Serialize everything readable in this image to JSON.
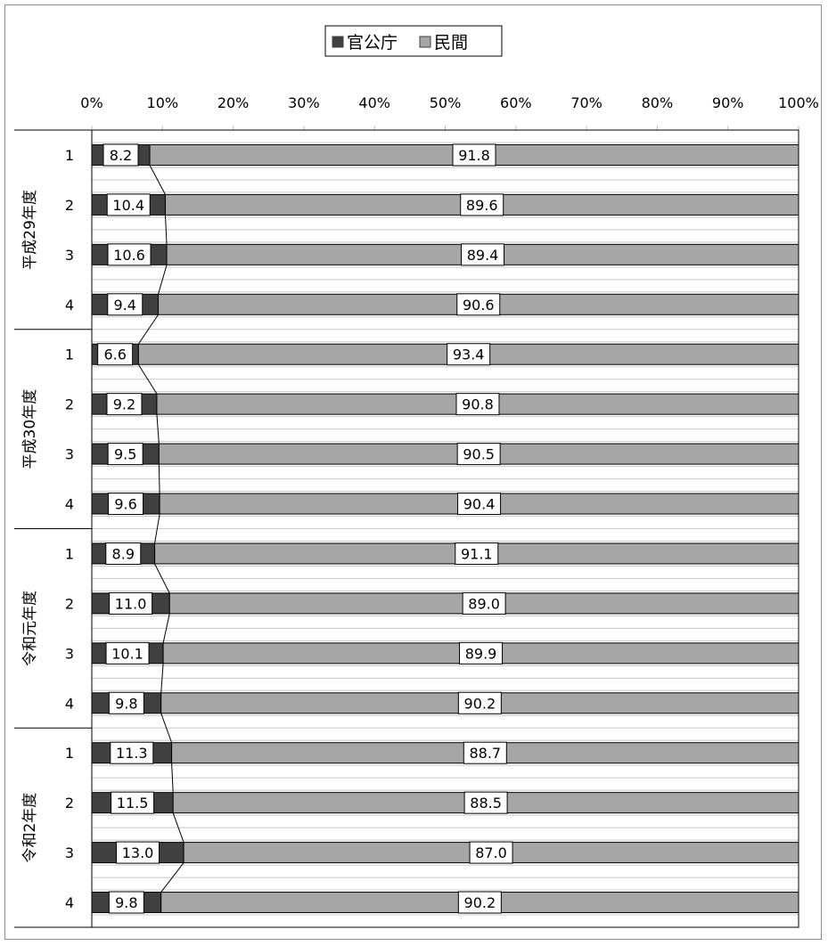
{
  "chart_data": {
    "type": "bar",
    "orientation": "horizontal",
    "stacked": "percent",
    "legend": {
      "placement": "top",
      "entries": [
        "官公庁",
        "民間"
      ]
    },
    "series": [
      {
        "name": "官公庁",
        "color": "#404040",
        "values": [
          8.2,
          10.4,
          10.6,
          9.4,
          6.6,
          9.2,
          9.5,
          9.6,
          8.9,
          11.0,
          10.1,
          9.8,
          11.3,
          11.5,
          13.0,
          9.8
        ]
      },
      {
        "name": "民間",
        "color": "#a6a6a6",
        "values": [
          91.8,
          89.6,
          89.4,
          90.6,
          93.4,
          90.8,
          90.5,
          90.4,
          91.1,
          89.0,
          89.9,
          90.2,
          88.7,
          88.5,
          87.0,
          90.2
        ]
      }
    ],
    "value_labels": [
      [
        "8.2",
        "10.4",
        "10.6",
        "9.4",
        "6.6",
        "9.2",
        "9.5",
        "9.6",
        "8.9",
        "11.0",
        "10.1",
        "9.8",
        "11.3",
        "11.5",
        "13.0",
        "9.8"
      ],
      [
        "91.8",
        "89.6",
        "89.4",
        "90.6",
        "93.4",
        "90.8",
        "90.5",
        "90.4",
        "91.1",
        "89.0",
        "89.9",
        "90.2",
        "88.7",
        "88.5",
        "87.0",
        "90.2"
      ]
    ],
    "groups": [
      {
        "label": "平成29年度",
        "quarters": [
          "1",
          "2",
          "3",
          "4"
        ]
      },
      {
        "label": "平成30年度",
        "quarters": [
          "1",
          "2",
          "3",
          "4"
        ]
      },
      {
        "label": "令和元年度",
        "quarters": [
          "1",
          "2",
          "3",
          "4"
        ]
      },
      {
        "label": "令和2年度",
        "quarters": [
          "1",
          "2",
          "3",
          "4"
        ]
      }
    ],
    "x_ticks": [
      "0%",
      "10%",
      "20%",
      "30%",
      "40%",
      "50%",
      "60%",
      "70%",
      "80%",
      "90%",
      "100%"
    ],
    "xlim": [
      0,
      100
    ],
    "xaxis_position": "top",
    "series_lines": true,
    "grid": false
  }
}
